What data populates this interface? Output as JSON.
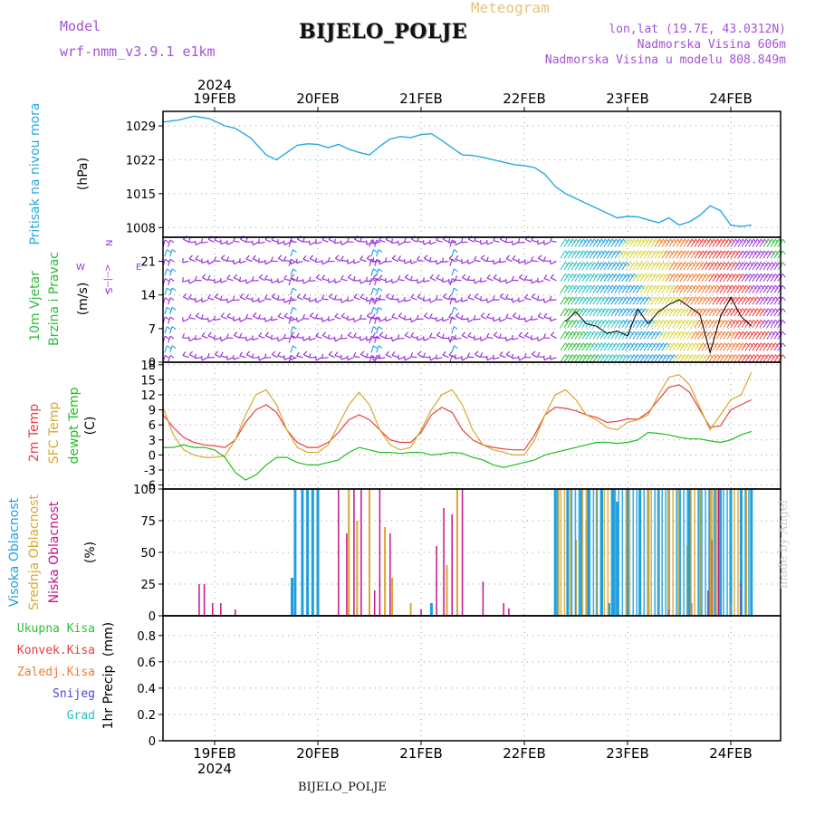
{
  "header": {
    "model_label": "Model",
    "model_name": "wrf-nmm_v3.9.1 e1km",
    "meteogram_label": "Meteogram",
    "station": "BIJELO_POLJE",
    "lonlat": "lon,lat (19.7E, 43.0312N)",
    "altitude": "Nadmorska Visina 606m",
    "model_altitude": "Nadmorska Visina u modelu 808.849m"
  },
  "footer": {
    "station": "BIJELO_POLJE",
    "watermark": "made by Angel"
  },
  "axis_dates": {
    "year": "2024",
    "days": [
      "19FEB",
      "20FEB",
      "21FEB",
      "22FEB",
      "23FEB",
      "24FEB"
    ]
  },
  "panel_labels": {
    "pressure": [
      "Pritisak na nivou mora",
      "(hPa)"
    ],
    "wind": [
      "10m Vjetar",
      "Brzina i Pravac",
      "(m/s)"
    ],
    "compass": [
      "N",
      "S",
      "W",
      "E"
    ],
    "temp": [
      "2m Temp",
      "SFC Temp",
      "dewpt Temp",
      "(C)"
    ],
    "cloud": [
      "Visoka Oblacnost",
      "Srednja Oblacnost",
      "Niska Oblacnost",
      "(%)"
    ],
    "precip_legend": [
      "Ukupna Kisa",
      "Konvek.Kisa",
      "Zaledj.Kisa",
      "Snijeg",
      "Grad"
    ],
    "precip_axis": [
      "1hr Precip",
      "(mm)"
    ]
  },
  "colors": {
    "pressure": "#29a8e0",
    "temp2m": "#e84040",
    "sfc": "#d9a82e",
    "dewpt": "#22bb22",
    "cloud_high": "#1e9fe0",
    "cloud_mid": "#d9a82e",
    "cloud_low": "#c2148c",
    "wind_calm": "#9933dd",
    "ukupna": "#2ebd3c",
    "konvek": "#ee3a3a",
    "zaledj": "#f07a30",
    "snijeg": "#4a45dd",
    "grad": "#28c0c0"
  },
  "chart_data": [
    {
      "type": "line",
      "panel": "pressure",
      "ylabel": "Pritisak na nivou mora (hPa)",
      "x_unit": "days since 19FEB 00UTC",
      "ylim": [
        1006,
        1032
      ],
      "yticks": [
        1008,
        1015,
        1022,
        1029
      ],
      "series": [
        {
          "name": "Pritisak na nivou mora",
          "x": [
            -0.6,
            -0.5,
            -0.35,
            -0.2,
            -0.05,
            0.1,
            0.2,
            0.35,
            0.5,
            0.6,
            0.7,
            0.8,
            0.9,
            1.0,
            1.1,
            1.2,
            1.3,
            1.4,
            1.5,
            1.6,
            1.7,
            1.8,
            1.9,
            2.0,
            2.1,
            2.2,
            2.3,
            2.4,
            2.5,
            2.6,
            2.7,
            2.8,
            2.9,
            3.0,
            3.1,
            3.2,
            3.3,
            3.4,
            3.5,
            3.6,
            3.7,
            3.8,
            3.9,
            4.0,
            4.1,
            4.2,
            4.3,
            4.4,
            4.5,
            4.6,
            4.7,
            4.8,
            4.9,
            5.0,
            5.1,
            5.2
          ],
          "values": [
            1030.5,
            1029.8,
            1030.2,
            1031.0,
            1030.5,
            1029.0,
            1028.5,
            1026.5,
            1023.0,
            1022.0,
            1023.5,
            1025.0,
            1025.3,
            1025.2,
            1024.5,
            1025.2,
            1024.2,
            1023.5,
            1023.0,
            1024.8,
            1026.3,
            1026.8,
            1026.6,
            1027.2,
            1027.4,
            1026.0,
            1024.5,
            1023.0,
            1022.9,
            1022.5,
            1022.0,
            1021.5,
            1021.0,
            1020.8,
            1020.4,
            1019.0,
            1016.5,
            1015.0,
            1014.0,
            1013.0,
            1012.0,
            1011.0,
            1010.0,
            1010.3,
            1010.2,
            1009.6,
            1009.0,
            1010.0,
            1008.5,
            1009.2,
            1010.5,
            1012.5,
            1011.5,
            1008.5,
            1008.2,
            1008.5
          ]
        }
      ]
    },
    {
      "type": "barbs",
      "panel": "wind",
      "ylabel": "10m Vjetar Brzina i Pravac (m/s)",
      "ylim": [
        0,
        26
      ],
      "yticks": [
        0,
        7,
        14,
        21
      ],
      "note": "calm purple barbs until ~22FEB 08UTC, then dense multicolour barbs",
      "series": [
        {
          "name": "brzina",
          "x": [
            3.4,
            3.5,
            3.6,
            3.7,
            3.8,
            3.9,
            4.0,
            4.1,
            4.2,
            4.3,
            4.4,
            4.5,
            4.6,
            4.7,
            4.8,
            4.9,
            5.0,
            5.1,
            5.2
          ],
          "values": [
            8.5,
            10.5,
            8.0,
            7.5,
            6.0,
            6.5,
            5.5,
            11.0,
            8.0,
            10.5,
            12.0,
            13.0,
            11.5,
            10.0,
            2.0,
            9.5,
            13.5,
            9.5,
            7.5
          ]
        }
      ]
    },
    {
      "type": "line",
      "panel": "temp",
      "ylabel": "(C)",
      "ylim": [
        -6.8,
        18.5
      ],
      "yticks": [
        -6,
        -3,
        0,
        3,
        6,
        9,
        12,
        15,
        18
      ],
      "x": [
        -0.6,
        -0.5,
        -0.4,
        -0.3,
        -0.2,
        -0.1,
        0.0,
        0.1,
        0.2,
        0.3,
        0.4,
        0.5,
        0.6,
        0.7,
        0.8,
        0.9,
        1.0,
        1.1,
        1.2,
        1.3,
        1.4,
        1.5,
        1.6,
        1.7,
        1.8,
        1.9,
        2.0,
        2.1,
        2.2,
        2.3,
        2.4,
        2.5,
        2.6,
        2.7,
        2.8,
        2.9,
        3.0,
        3.1,
        3.2,
        3.3,
        3.4,
        3.5,
        3.6,
        3.7,
        3.8,
        3.9,
        4.0,
        4.1,
        4.2,
        4.3,
        4.4,
        4.5,
        4.6,
        4.7,
        4.8,
        4.9,
        5.0,
        5.1,
        5.2
      ],
      "series": [
        {
          "name": "2m Temp",
          "values": [
            9.5,
            8.0,
            5.5,
            3.5,
            2.5,
            2.0,
            1.8,
            1.5,
            3.0,
            6.5,
            9.0,
            10.0,
            8.5,
            5.0,
            2.5,
            1.5,
            1.5,
            2.5,
            4.5,
            7.0,
            8.0,
            7.0,
            5.0,
            3.0,
            2.5,
            2.5,
            4.5,
            8.0,
            9.5,
            8.5,
            5.0,
            3.0,
            2.0,
            1.5,
            1.2,
            1.0,
            1.0,
            4.0,
            8.0,
            9.5,
            9.3,
            8.8,
            8.0,
            7.5,
            6.5,
            6.7,
            7.2,
            7.1,
            8.5,
            11.0,
            13.5,
            14.0,
            12.5,
            9.0,
            5.5,
            5.8,
            9.0,
            10.0,
            11.0
          ]
        },
        {
          "name": "SFC Temp",
          "values": [
            13.0,
            9.5,
            4.0,
            1.0,
            0.0,
            -0.5,
            -0.5,
            -0.2,
            3.0,
            8.0,
            12.0,
            13.0,
            10.0,
            5.0,
            1.5,
            0.5,
            0.5,
            2.0,
            6.0,
            10.0,
            12.5,
            10.0,
            5.0,
            2.0,
            1.0,
            1.5,
            5.0,
            9.0,
            12.0,
            13.0,
            10.0,
            5.0,
            2.0,
            1.0,
            0.5,
            0.0,
            0.0,
            3.0,
            8.0,
            12.0,
            13.0,
            11.0,
            8.0,
            7.0,
            5.5,
            5.0,
            6.5,
            7.0,
            8.0,
            12.0,
            15.5,
            16.0,
            14.0,
            9.5,
            5.0,
            8.0,
            11.0,
            12.0,
            16.5
          ]
        },
        {
          "name": "dewpt Temp",
          "values": [
            2.0,
            1.5,
            1.5,
            2.0,
            1.5,
            1.5,
            1.0,
            -0.5,
            -3.5,
            -5.0,
            -4.0,
            -2.0,
            -0.5,
            -0.5,
            -1.5,
            -2.0,
            -2.0,
            -1.5,
            -1.0,
            0.5,
            1.5,
            1.0,
            0.5,
            0.5,
            0.3,
            0.5,
            0.5,
            0.0,
            0.2,
            0.5,
            0.3,
            -0.5,
            -1.0,
            -2.0,
            -2.5,
            -2.0,
            -1.5,
            -1.0,
            0.0,
            0.5,
            1.0,
            1.5,
            2.0,
            2.5,
            2.5,
            2.3,
            2.5,
            3.0,
            4.5,
            4.3,
            4.0,
            3.5,
            3.2,
            3.2,
            2.8,
            2.5,
            3.0,
            4.0,
            4.7
          ]
        }
      ]
    },
    {
      "type": "bar",
      "panel": "cloud",
      "ylabel": "Oblacnost (%)",
      "ylim": [
        0,
        100
      ],
      "yticks": [
        0,
        25,
        50,
        75,
        100
      ],
      "series": [
        {
          "name": "Visoka Oblacnost",
          "x": [
            0.75,
            0.78,
            0.85,
            0.9,
            0.95,
            1.0,
            2.1,
            3.3,
            3.42,
            3.55,
            3.62,
            3.75,
            3.82,
            3.86,
            3.9,
            4.0,
            4.12,
            4.2,
            4.3,
            4.4,
            4.5,
            4.6,
            4.7,
            4.8,
            4.85,
            4.9,
            5.0,
            5.1,
            5.2
          ],
          "values": [
            30,
            100,
            100,
            100,
            100,
            100,
            10,
            100,
            100,
            100,
            100,
            100,
            10,
            100,
            90,
            100,
            100,
            100,
            100,
            100,
            100,
            100,
            100,
            100,
            100,
            100,
            100,
            100,
            100
          ]
        },
        {
          "name": "Srednja Oblacnost",
          "x": [
            1.3,
            1.38,
            1.5,
            1.65,
            1.72,
            1.9,
            2.25,
            2.35,
            3.33,
            3.45,
            3.5,
            3.6,
            3.7,
            4.2,
            4.3,
            4.4,
            4.5,
            4.58,
            4.7,
            4.8,
            5.0,
            5.15
          ],
          "values": [
            100,
            75,
            100,
            70,
            30,
            10,
            40,
            100,
            100,
            100,
            60,
            75,
            100,
            100,
            100,
            100,
            100,
            55,
            100,
            100,
            10,
            100
          ]
        },
        {
          "name": "Niska Oblacnost",
          "x": [
            -0.15,
            -0.1,
            -0.02,
            0.06,
            0.2,
            1.2,
            1.28,
            1.35,
            1.42,
            1.55,
            1.6,
            1.7,
            2.0,
            2.15,
            2.22,
            2.3,
            2.4,
            2.6,
            2.8,
            2.85,
            4.4,
            4.62,
            4.78,
            4.82,
            4.88,
            5.1
          ],
          "values": [
            25,
            25,
            10,
            10,
            5,
            100,
            65,
            100,
            100,
            20,
            100,
            65,
            5,
            55,
            85,
            80,
            100,
            27,
            10,
            6,
            5,
            10,
            20,
            60,
            100,
            25
          ]
        }
      ]
    },
    {
      "type": "bar",
      "panel": "precip",
      "ylabel": "1hr Precip (mm)",
      "ylim": [
        0,
        0.95
      ],
      "yticks": [
        0,
        0.2,
        0.4,
        0.6,
        0.8
      ],
      "series": [
        {
          "name": "Ukupna Kisa",
          "values": []
        },
        {
          "name": "Konvek.Kisa",
          "values": []
        },
        {
          "name": "Zaledj.Kisa",
          "values": []
        },
        {
          "name": "Snijeg",
          "values": []
        },
        {
          "name": "Grad",
          "values": []
        }
      ]
    }
  ]
}
